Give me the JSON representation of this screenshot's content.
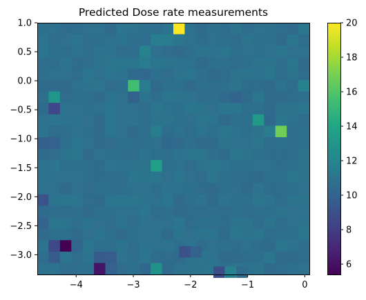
{
  "chart_data": {
    "type": "heatmap",
    "title": "Predicted Dose rate measurements",
    "xlabel": "",
    "ylabel": "",
    "xlim": [
      -4.68,
      0.08
    ],
    "ylim": [
      -3.34,
      1.0
    ],
    "grid": false,
    "colormap": "viridis",
    "colorbar": {
      "min": 5.4,
      "max": 20,
      "ticks": [
        6,
        8,
        10,
        12,
        14,
        16,
        18,
        20
      ]
    },
    "x_ticks": [
      -4,
      -3,
      -2,
      -1,
      0
    ],
    "y_ticks": [
      1.0,
      0.5,
      0.0,
      -0.5,
      -1.0,
      -1.5,
      -2.0,
      -2.5,
      -3.0
    ],
    "x_tick_labels": [
      "−4",
      "−3",
      "−2",
      "−1",
      "0"
    ],
    "y_tick_labels": [
      "1.0",
      "0.5",
      "0.0",
      "−0.5",
      "−1.0",
      "−1.5",
      "−2.0",
      "−2.5",
      "−3.0"
    ],
    "colorbar_tick_labels": [
      "6",
      "8",
      "10",
      "12",
      "14",
      "16",
      "18",
      "20"
    ],
    "grid_shape": {
      "cols": 24,
      "rows": 22
    },
    "background_value": 10.8,
    "cells": [
      {
        "col": 12,
        "row": 0,
        "value": 20.0
      },
      {
        "col": 10,
        "row": 1,
        "value": 11.6
      },
      {
        "col": 11,
        "row": 1,
        "value": 11.5
      },
      {
        "col": 9,
        "row": 2,
        "value": 11.8
      },
      {
        "col": 9,
        "row": 3,
        "value": 11.4
      },
      {
        "col": 9,
        "row": 4,
        "value": 10.3
      },
      {
        "col": 8,
        "row": 4,
        "value": 10.4
      },
      {
        "col": 8,
        "row": 5,
        "value": 15.5
      },
      {
        "col": 9,
        "row": 5,
        "value": 11.5
      },
      {
        "col": 23,
        "row": 5,
        "value": 11.8
      },
      {
        "col": 1,
        "row": 6,
        "value": 13.0
      },
      {
        "col": 8,
        "row": 6,
        "value": 10.0
      },
      {
        "col": 17,
        "row": 6,
        "value": 10.1
      },
      {
        "col": 18,
        "row": 6,
        "value": 10.4
      },
      {
        "col": 1,
        "row": 7,
        "value": 8.5
      },
      {
        "col": 20,
        "row": 7,
        "value": 10.4
      },
      {
        "col": 19,
        "row": 8,
        "value": 13.2
      },
      {
        "col": 20,
        "row": 8,
        "value": 10.3
      },
      {
        "col": 21,
        "row": 9,
        "value": 16.8
      },
      {
        "col": 20,
        "row": 9,
        "value": 11.4
      },
      {
        "col": 10,
        "row": 9,
        "value": 11.5
      },
      {
        "col": 0,
        "row": 10,
        "value": 9.8
      },
      {
        "col": 1,
        "row": 10,
        "value": 10.0
      },
      {
        "col": 11,
        "row": 10,
        "value": 10.3
      },
      {
        "col": 12,
        "row": 10,
        "value": 10.4
      },
      {
        "col": 10,
        "row": 12,
        "value": 13.6
      },
      {
        "col": 16,
        "row": 11,
        "value": 10.5
      },
      {
        "col": 0,
        "row": 15,
        "value": 9.2
      },
      {
        "col": 0,
        "row": 17,
        "value": 10.1
      },
      {
        "col": 1,
        "row": 19,
        "value": 8.6
      },
      {
        "col": 2,
        "row": 19,
        "value": 5.4
      },
      {
        "col": 3,
        "row": 19,
        "value": 10.2
      },
      {
        "col": 1,
        "row": 20,
        "value": 9.6
      },
      {
        "col": 5,
        "row": 20,
        "value": 9.6
      },
      {
        "col": 6,
        "row": 20,
        "value": 9.7
      },
      {
        "col": 5,
        "row": 21,
        "value": 6.2
      },
      {
        "col": 6,
        "row": 21,
        "value": 9.9
      },
      {
        "col": 10,
        "row": 21,
        "value": 12.7
      },
      {
        "col": 9,
        "row": 21,
        "value": 10.3
      }
    ],
    "extra_bottom_cells": [
      {
        "x": -2.1,
        "y": -2.95,
        "value": 9.0
      },
      {
        "x": -1.9,
        "y": -2.95,
        "value": 10.0
      },
      {
        "x": -1.5,
        "y": -3.3,
        "value": 8.8
      },
      {
        "x": -1.3,
        "y": -3.3,
        "value": 11.9
      },
      {
        "x": -1.1,
        "y": -3.3,
        "value": 10.4
      }
    ]
  }
}
